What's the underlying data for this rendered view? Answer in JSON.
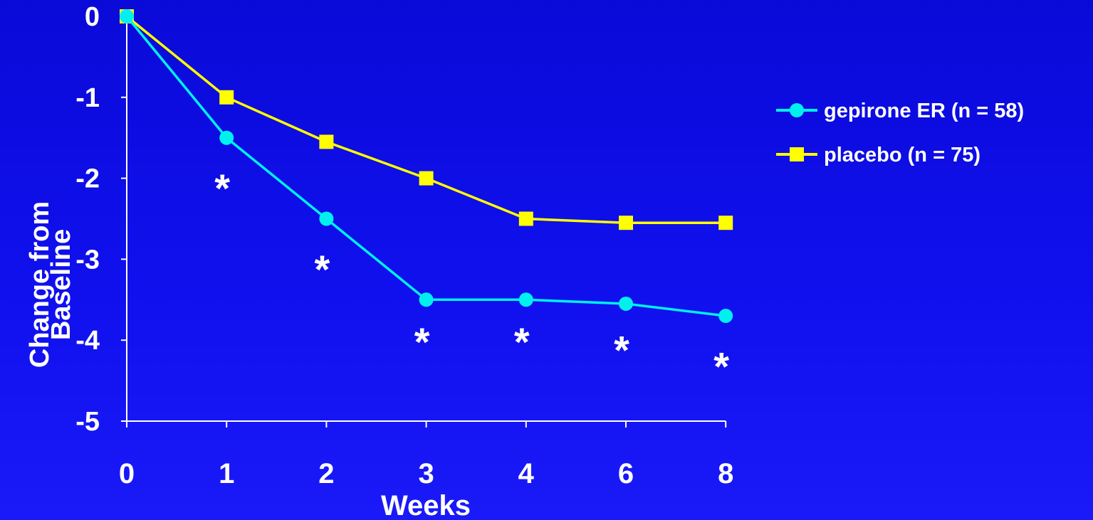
{
  "chart_data": {
    "type": "line",
    "categories": [
      "0",
      "1",
      "2",
      "3",
      "4",
      "6",
      "8"
    ],
    "xlabel": "Weeks",
    "ylabel_lines": [
      "Change from",
      "Baseline"
    ],
    "ylim": [
      -5,
      0
    ],
    "yticks": [
      "0",
      "-1",
      "-2",
      "-3",
      "-4",
      "-5"
    ],
    "ytick_values": [
      0,
      -1,
      -2,
      -3,
      -4,
      -5
    ],
    "grid": false,
    "legend_position": "right",
    "series": [
      {
        "name": "gepirone ER (n = 58)",
        "values": [
          0,
          -1.5,
          -2.5,
          -3.5,
          -3.5,
          -3.55,
          -3.7
        ],
        "color": "#00f0f0",
        "marker": "circle"
      },
      {
        "name": "placebo (n = 75)",
        "values": [
          0,
          -1.0,
          -1.55,
          -2.0,
          -2.5,
          -2.55,
          -2.55
        ],
        "color": "#ffff00",
        "marker": "square"
      }
    ],
    "annotations": [
      {
        "category": "1",
        "text": "*",
        "y": -2.1
      },
      {
        "category": "2",
        "text": "*",
        "y": -3.1
      },
      {
        "category": "3",
        "text": "*",
        "y": -4.0
      },
      {
        "category": "4",
        "text": "*",
        "y": -4.0
      },
      {
        "category": "6",
        "text": "*",
        "y": -4.1
      },
      {
        "category": "8",
        "text": "*",
        "y": -4.3
      }
    ]
  },
  "colors": {
    "axis": "#ffffff",
    "text": "#ffffff"
  }
}
